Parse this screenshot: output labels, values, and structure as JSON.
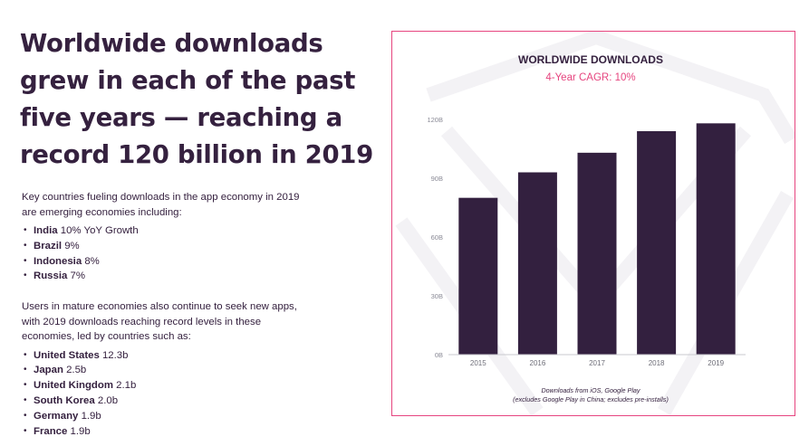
{
  "headline": "Worldwide downloads grew in each of the past five years — reaching a record 120 billion in 2019",
  "emerging": {
    "intro": "Key countries fueling downloads in the app economy in 2019 are emerging economies including:",
    "items": [
      {
        "name": "India",
        "value": "10% YoY Growth"
      },
      {
        "name": "Brazil",
        "value": "9%"
      },
      {
        "name": "Indonesia",
        "value": "8%"
      },
      {
        "name": "Russia",
        "value": "7%"
      }
    ]
  },
  "mature": {
    "intro": "Users in mature economies also continue to seek new apps, with 2019 downloads reaching record levels in these economies, led by countries such as:",
    "items": [
      {
        "name": "United States",
        "value": "12.3b"
      },
      {
        "name": "Japan",
        "value": "2.5b"
      },
      {
        "name": "United Kingdom",
        "value": "2.1b"
      },
      {
        "name": "South Korea",
        "value": "2.0b"
      },
      {
        "name": "Germany",
        "value": "1.9b"
      },
      {
        "name": "France",
        "value": "1.9b"
      }
    ]
  },
  "colors": {
    "bar": "#33203f",
    "accent": "#e6457f",
    "text": "#35213f",
    "muted": "#8a8a96"
  },
  "chart_data": {
    "type": "bar",
    "title": "WORLDWIDE DOWNLOADS",
    "subtitle": "4-Year CAGR: 10%",
    "categories": [
      "2015",
      "2016",
      "2017",
      "2018",
      "2019"
    ],
    "values": [
      80,
      93,
      103,
      114,
      118
    ],
    "ylim": [
      0,
      120
    ],
    "yticks": [
      0,
      30,
      60,
      90,
      120
    ],
    "ytick_labels": [
      "0B",
      "30B",
      "60B",
      "90B",
      "120B"
    ],
    "xlabel": "",
    "ylabel": "",
    "grid": false,
    "footnote": [
      "Downloads from iOS, Google Play",
      "(excludes Google Play in China; excludes pre-installs)"
    ]
  }
}
